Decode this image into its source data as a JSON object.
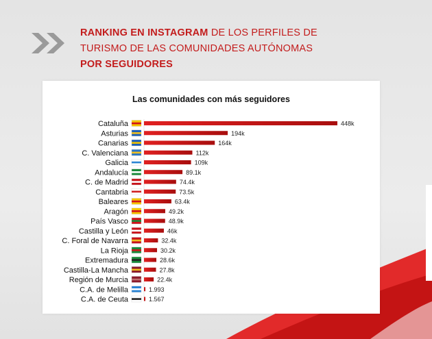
{
  "header": {
    "line1_bold": "RANKING EN INSTAGRAM",
    "line1_rest": " DE LOS PERFILES DE",
    "line2": "TURISMO DE LAS COMUNIDADES AUTÓNOMAS",
    "line3_bold": "POR SEGUIDORES"
  },
  "colors": {
    "accent": "#c31c1c",
    "bar_dark": "#a80e0e",
    "bar_light": "#e02121"
  },
  "chart_data": {
    "type": "bar",
    "orientation": "horizontal",
    "title": "Las comunidades con más seguidores",
    "categories": [
      "Cataluña",
      "Asturias",
      "Canarias",
      "C. Valenciana",
      "Galicia",
      "Andalucía",
      "C. de Madrid",
      "Cantabria",
      "Baleares",
      "Aragón",
      "País Vasco",
      "Castilla y León",
      "C. Foral de Navarra",
      "La Rioja",
      "Extremadura",
      "Castilla-La Mancha",
      "Región de Murcia",
      "C.A. de Melilla",
      "C.A. de Ceuta"
    ],
    "values": [
      448000,
      194000,
      164000,
      112000,
      109000,
      89100,
      74400,
      73500,
      63400,
      49200,
      48900,
      46000,
      32400,
      30200,
      28600,
      27800,
      22400,
      1993,
      1567
    ],
    "data_labels": [
      "448k",
      "194k",
      "164k",
      "112k",
      "109k",
      "89.1k",
      "74.4k",
      "73.5k",
      "63.4k",
      "49.2k",
      "48.9k",
      "46k",
      "32.4k",
      "30.2k",
      "28.6k",
      "27.8k",
      "22.4k",
      "1.993",
      "1.567"
    ],
    "flags": [
      [
        "#f5c400",
        "#d0131b"
      ],
      [
        "#1f5fb4",
        "#f0c020"
      ],
      [
        "#1f5fb4",
        "#f2c200"
      ],
      [
        "#2b75c2",
        "#f0c020"
      ],
      [
        "#ffffff",
        "#2a84d4"
      ],
      [
        "#1a8a3a",
        "#ffffff"
      ],
      [
        "#c8121a",
        "#ffffff"
      ],
      [
        "#ffffff",
        "#d02020"
      ],
      [
        "#f5c400",
        "#d0131b"
      ],
      [
        "#f5c400",
        "#d0131b"
      ],
      [
        "#d0131b",
        "#1a8a3a"
      ],
      [
        "#c8121a",
        "#ffffff"
      ],
      [
        "#c8121a",
        "#f0c020"
      ],
      [
        "#1a8a3a",
        "#d0131b"
      ],
      [
        "#1a8a3a",
        "#222222"
      ],
      [
        "#8b1a2a",
        "#f0c020"
      ],
      [
        "#8b1a2a",
        "#c07070"
      ],
      [
        "#2a84d4",
        "#ffffff"
      ],
      [
        "#ffffff",
        "#222222"
      ]
    ],
    "xlim": [
      0,
      448000
    ],
    "grid": false,
    "legend": "none"
  }
}
